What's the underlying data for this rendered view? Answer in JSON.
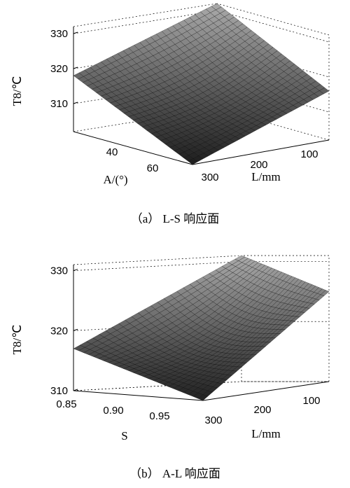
{
  "chart_data": [
    {
      "id": "a",
      "type": "surface",
      "caption": "（a） L-S 响应面",
      "zlabel": "T8/℃",
      "xlabel": "L/mm",
      "ylabel": "A/(°)",
      "x_ticks": [
        "100",
        "200",
        "300"
      ],
      "y_ticks": [
        "40",
        "60"
      ],
      "z_ticks": [
        "310",
        "320",
        "330"
      ],
      "xlim": [
        50,
        310
      ],
      "ylim": [
        30,
        80
      ],
      "zlim": [
        302,
        332
      ],
      "corner_values": [
        {
          "x": 300,
          "y": 30,
          "z": 302
        },
        {
          "x": 300,
          "y": 80,
          "z": 316
        },
        {
          "x": 50,
          "y": 80,
          "z": 332
        },
        {
          "x": 50,
          "y": 30,
          "z": 318
        }
      ]
    },
    {
      "id": "b",
      "type": "surface",
      "caption": "（b） A-L 响应面",
      "zlabel": "T8/℃",
      "xlabel": "L/mm",
      "ylabel": "S",
      "x_ticks": [
        "100",
        "200",
        "300"
      ],
      "y_ticks": [
        "0.85",
        "0.90",
        "0.95"
      ],
      "z_ticks": [
        "310",
        "320",
        "330"
      ],
      "xlim": [
        50,
        310
      ],
      "ylim": [
        0.84,
        0.99
      ],
      "zlim": [
        310,
        331
      ],
      "corner_values": [
        {
          "x": 300,
          "y": 0.99,
          "z": 310
        },
        {
          "x": 300,
          "y": 0.84,
          "z": 325
        },
        {
          "x": 50,
          "y": 0.84,
          "z": 331
        },
        {
          "x": 50,
          "y": 0.99,
          "z": 317
        }
      ]
    }
  ]
}
